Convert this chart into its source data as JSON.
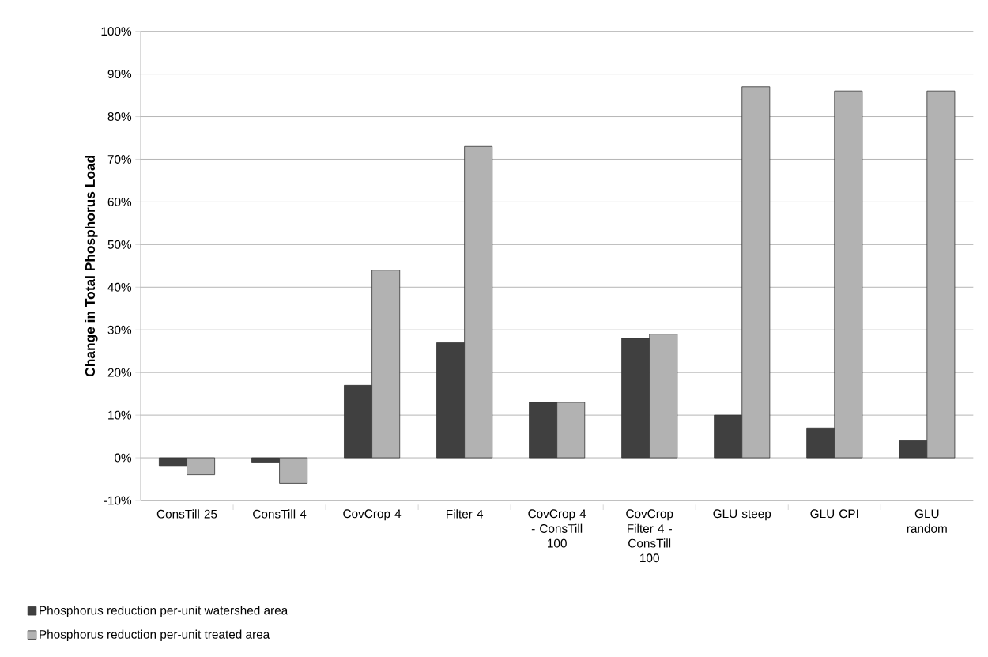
{
  "chart_data": {
    "type": "bar",
    "ylabel": "Change in Total Phosphorus Load",
    "categories": [
      "ConsTill 25",
      "ConsTill 4",
      "CovCrop 4",
      "Filter 4",
      "CovCrop 4 - ConsTill 100",
      "CovCrop Filter 4 - ConsTill 100",
      "GLU steep",
      "GLU CPI",
      "GLU random"
    ],
    "series": [
      {
        "name": "Phosphorus reduction per-unit watershed area",
        "color": "#404040",
        "values": [
          -2,
          -1,
          17,
          27,
          13,
          28,
          10,
          7,
          4
        ]
      },
      {
        "name": "Phosphorus reduction per-unit treated area",
        "color": "#b2b2b2",
        "values": [
          -4,
          -6,
          44,
          73,
          13,
          29,
          87,
          86,
          86
        ]
      }
    ],
    "ylim": [
      -10,
      100
    ],
    "yticks": [
      {
        "value": -10,
        "label": "-10%"
      },
      {
        "value": 0,
        "label": "0%"
      },
      {
        "value": 10,
        "label": "10%"
      },
      {
        "value": 20,
        "label": "20%"
      },
      {
        "value": 30,
        "label": "30%"
      },
      {
        "value": 40,
        "label": "40%"
      },
      {
        "value": 50,
        "label": "50%"
      },
      {
        "value": 60,
        "label": "60%"
      },
      {
        "value": 70,
        "label": "70%"
      },
      {
        "value": 80,
        "label": "80%"
      },
      {
        "value": 90,
        "label": "90%"
      },
      {
        "value": 100,
        "label": "100%"
      }
    ],
    "grid": "y",
    "legend": "bottom"
  }
}
